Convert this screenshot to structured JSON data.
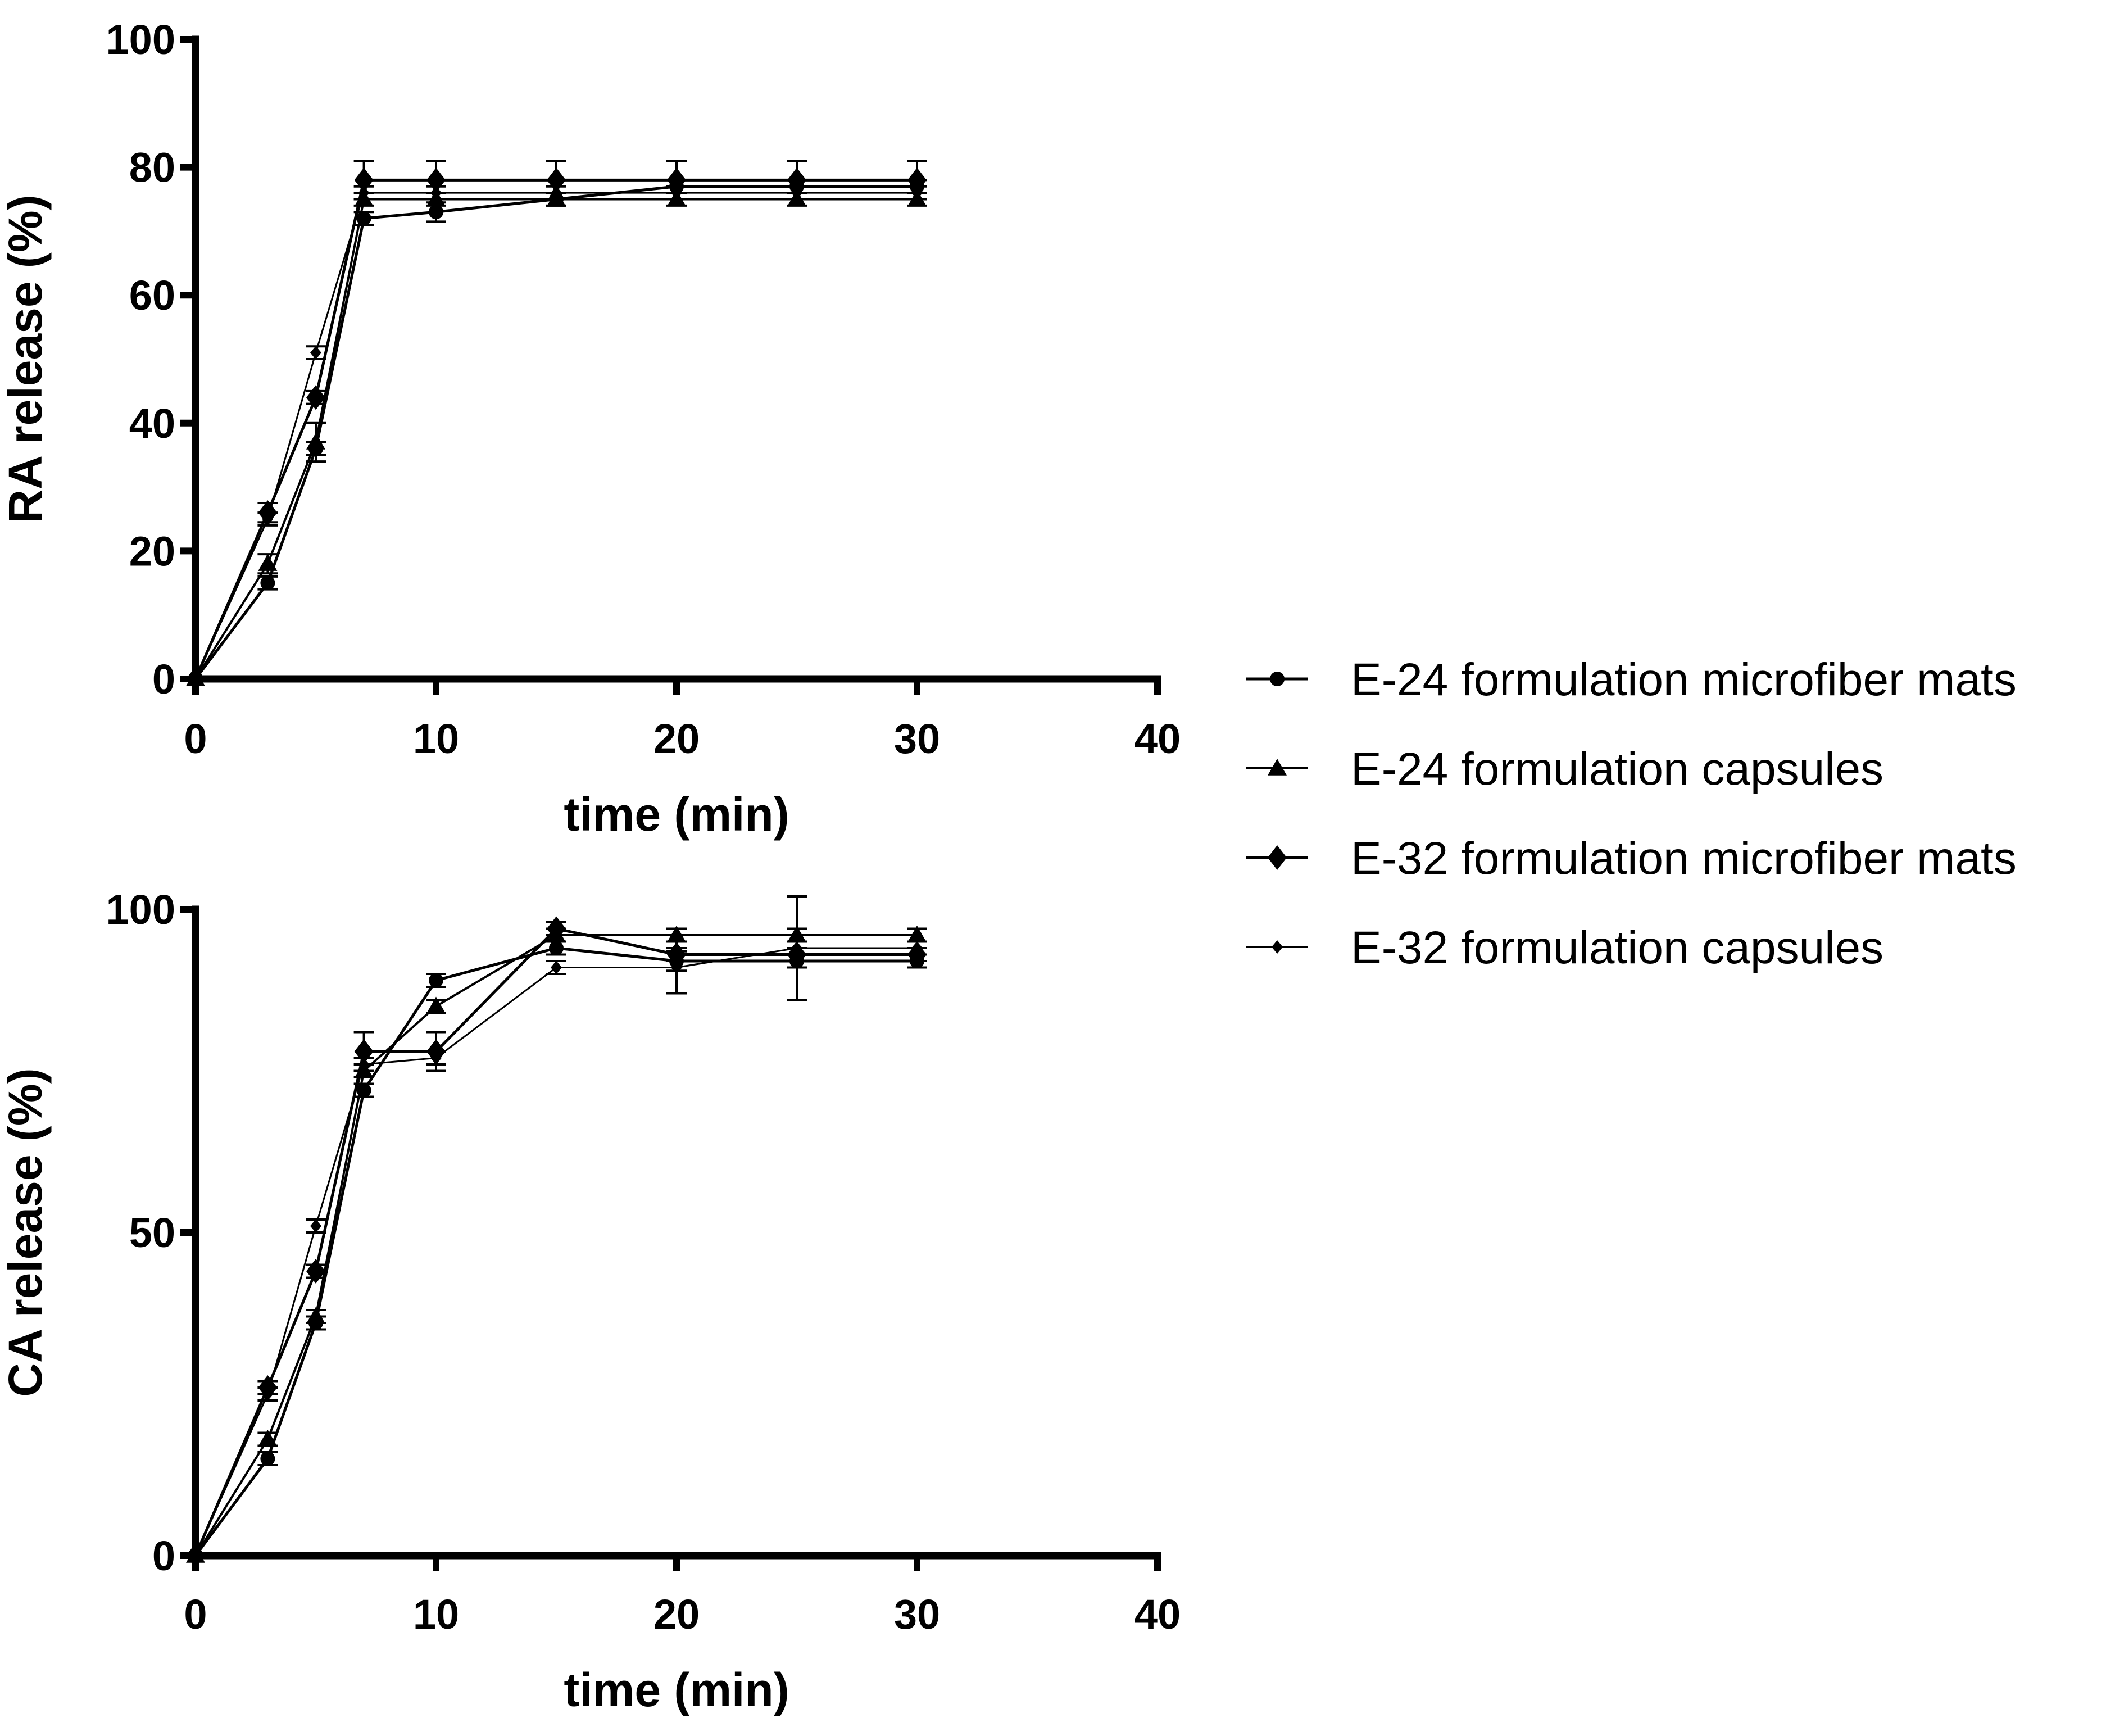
{
  "chart_data": [
    {
      "type": "line",
      "ylabel": "RA release (%)",
      "xlabel": "time (min)",
      "xlim": [
        0,
        40
      ],
      "ylim": [
        0,
        100
      ],
      "xticks": [
        0,
        10,
        20,
        30,
        40
      ],
      "yticks": [
        0,
        20,
        40,
        60,
        80,
        100
      ],
      "x": [
        0,
        3,
        5,
        7,
        10,
        15,
        20,
        25,
        30
      ],
      "series": [
        {
          "name": "E-24 formulation microfiber mats",
          "marker": "circle",
          "values": [
            0,
            15,
            36,
            72,
            73,
            75,
            77,
            77,
            77
          ],
          "errors": [
            0,
            1,
            1,
            1,
            1.5,
            1,
            1,
            1,
            1
          ]
        },
        {
          "name": "E-24 formulation capsules",
          "marker": "triangle",
          "values": [
            0,
            18,
            37,
            75,
            75,
            75,
            75,
            75,
            75
          ],
          "errors": [
            0,
            1.5,
            3,
            1,
            1,
            1,
            1,
            1,
            1
          ]
        },
        {
          "name": "E-32 formulation microfiber mats",
          "marker": "diamond",
          "values": [
            0,
            26,
            44,
            78,
            78,
            78,
            78,
            78,
            78
          ],
          "errors": [
            0,
            1.5,
            1,
            3,
            3,
            3,
            3,
            3,
            3
          ]
        },
        {
          "name": "E-32 formulation capsules",
          "marker": "small-diamond",
          "values": [
            0,
            25,
            51,
            76,
            76,
            76,
            76,
            76,
            76
          ],
          "errors": [
            0,
            1,
            1,
            1,
            1,
            1,
            1,
            1,
            1
          ]
        }
      ]
    },
    {
      "type": "line",
      "ylabel": "CA release (%)",
      "xlabel": "time (min)",
      "xlim": [
        0,
        40
      ],
      "ylim": [
        0,
        100
      ],
      "xticks": [
        0,
        10,
        20,
        30,
        40
      ],
      "yticks": [
        0,
        50,
        100
      ],
      "x": [
        0,
        3,
        5,
        7,
        10,
        15,
        20,
        25,
        30
      ],
      "series": [
        {
          "name": "E-24 formulation microfiber mats",
          "marker": "circle",
          "values": [
            0,
            15,
            36,
            72,
            89,
            94,
            92,
            92,
            92
          ],
          "errors": [
            0,
            1,
            1,
            1,
            1,
            1,
            1.5,
            1,
            1
          ]
        },
        {
          "name": "E-24 formulation capsules",
          "marker": "triangle",
          "values": [
            0,
            18,
            37,
            75,
            85,
            96,
            96,
            96,
            96
          ],
          "errors": [
            0,
            1,
            1,
            1,
            1,
            1,
            1,
            1,
            1
          ]
        },
        {
          "name": "E-32 formulation microfiber mats",
          "marker": "diamond",
          "values": [
            0,
            26,
            44,
            78,
            78,
            97,
            93,
            93,
            93
          ],
          "errors": [
            0,
            1,
            1,
            3,
            3,
            1,
            1,
            1,
            1
          ]
        },
        {
          "name": "E-32 formulation capsules",
          "marker": "small-diamond",
          "values": [
            0,
            25,
            51,
            76,
            77,
            91,
            91,
            94,
            94
          ],
          "errors": [
            0,
            1,
            1,
            1,
            1,
            1,
            4,
            8,
            3
          ]
        }
      ]
    }
  ]
}
